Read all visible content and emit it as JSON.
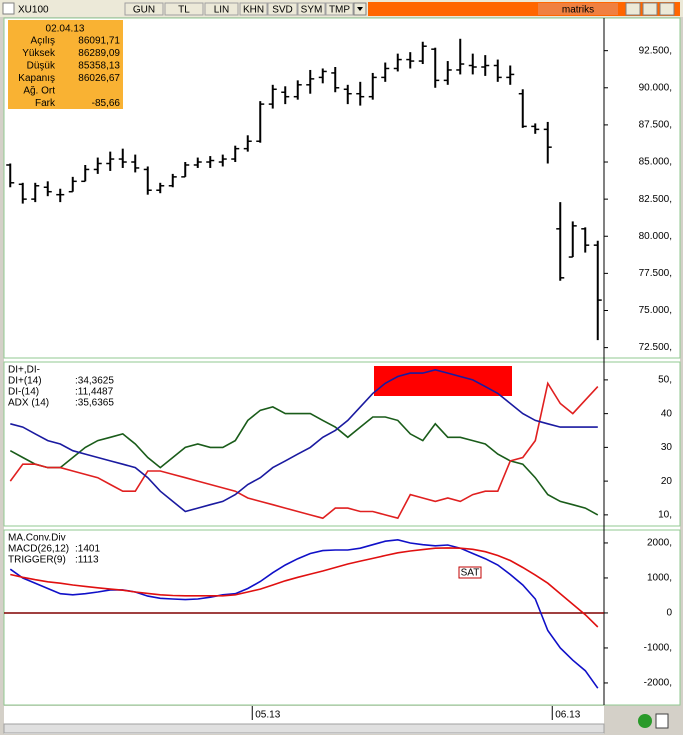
{
  "toolbar": {
    "symbol": "XU100",
    "buttons": [
      "GUN",
      "TL",
      "LIN",
      "KHN",
      "SVD",
      "SYM",
      "TMP"
    ],
    "brand": "matriks"
  },
  "info_box": {
    "date": "02.04.13",
    "rows": [
      {
        "label": "Açılış",
        "value": "86091,71"
      },
      {
        "label": "Yüksek",
        "value": "86289,09"
      },
      {
        "label": "Düşük",
        "value": "85358,13"
      },
      {
        "label": "Kapanış",
        "value": "86026,67"
      },
      {
        "label": "Ağ. Ort"
      },
      {
        "label": "Fark",
        "value": "-85,66"
      }
    ]
  },
  "chart_data": [
    {
      "type": "ohlc",
      "color": "#000000",
      "ylim": [
        71800,
        94700
      ],
      "yticks": [
        {
          "value": 72500,
          "label": "72.500,"
        },
        {
          "value": 75000,
          "label": "75.000,"
        },
        {
          "value": 77500,
          "label": "77.500,"
        },
        {
          "value": 80000,
          "label": "80.000,"
        },
        {
          "value": 82500,
          "label": "82.500,"
        },
        {
          "value": 85000,
          "label": "85.000,"
        },
        {
          "value": 87500,
          "label": "87.500,"
        },
        {
          "value": 90000,
          "label": "90.000,"
        },
        {
          "value": 92500,
          "label": "92.500,"
        }
      ],
      "open": [
        84800,
        83500,
        82500,
        83300,
        82800,
        83000,
        83700,
        84500,
        84900,
        85200,
        85000,
        84500,
        83100,
        83400,
        84000,
        84800,
        85000,
        85000,
        85200,
        85900,
        86400,
        88900,
        89700,
        89400,
        90200,
        90700,
        91000,
        89900,
        89600,
        89400,
        90700,
        91300,
        91900,
        91800,
        92600,
        90500,
        91200,
        91500,
        91400,
        91500,
        90700,
        89600,
        87400,
        87200,
        80500,
        78600,
        80500,
        79400
      ],
      "high": [
        84900,
        83600,
        83600,
        83700,
        83200,
        84000,
        84800,
        85300,
        85700,
        85900,
        85500,
        84700,
        83600,
        84200,
        85000,
        85300,
        85400,
        85500,
        86100,
        86800,
        89100,
        90200,
        90100,
        90500,
        91200,
        91300,
        91400,
        90200,
        90400,
        91000,
        91700,
        92300,
        92400,
        93100,
        92700,
        91800,
        93300,
        92300,
        92200,
        91900,
        91500,
        89900,
        87600,
        87700,
        82300,
        81000,
        80600,
        79700
      ],
      "low": [
        83300,
        82200,
        82300,
        82700,
        82300,
        83000,
        83700,
        84200,
        84400,
        84600,
        84300,
        82800,
        82900,
        83300,
        84000,
        84600,
        84600,
        84700,
        85000,
        85700,
        86300,
        88600,
        88900,
        89200,
        89600,
        90300,
        89700,
        88900,
        88800,
        89200,
        90400,
        91100,
        91300,
        91600,
        90000,
        90200,
        90900,
        90900,
        90800,
        90400,
        90200,
        87300,
        86900,
        84900,
        77000,
        78600,
        78900,
        73000
      ],
      "close": [
        83600,
        82500,
        83400,
        83000,
        82800,
        83700,
        84500,
        84900,
        85200,
        85000,
        84600,
        83100,
        83400,
        84000,
        84800,
        85000,
        85100,
        85200,
        85900,
        86400,
        88900,
        89900,
        89400,
        90200,
        90600,
        91100,
        90000,
        89600,
        89400,
        90700,
        91300,
        91900,
        91800,
        92800,
        90500,
        91200,
        91600,
        91400,
        91500,
        90700,
        90900,
        87400,
        87200,
        86000,
        77200,
        80700,
        79400,
        75700
      ]
    },
    {
      "type": "line",
      "legend_title": "DI+,DI-",
      "ylim": [
        6.7,
        55.3
      ],
      "yticks": [
        {
          "value": 10,
          "label": "10,"
        },
        20,
        30,
        40,
        {
          "value": 50,
          "label": "50,"
        }
      ],
      "series": [
        {
          "name": "DI+(14)",
          "legend_value": ":34,3625",
          "color": "#1a5c1a",
          "values": [
            29,
            27,
            25,
            24,
            24,
            27,
            30,
            32,
            33,
            34,
            31,
            27,
            24,
            27,
            30,
            31,
            30,
            30,
            32,
            38,
            41,
            42,
            40,
            40,
            40,
            38,
            36,
            33,
            36,
            39,
            39,
            38,
            34,
            32,
            37,
            33,
            33,
            32,
            31,
            28,
            26,
            25,
            21,
            16,
            14,
            13,
            12,
            10
          ]
        },
        {
          "name": "DI-(14)",
          "legend_value": ":11,4487",
          "color": "#e02020",
          "values": [
            20,
            25,
            25,
            24,
            24,
            23,
            22,
            21,
            19,
            17,
            17,
            23,
            23,
            22,
            21,
            20,
            19,
            18,
            17,
            15,
            14,
            13,
            12,
            11,
            10,
            9,
            12,
            12,
            11,
            11,
            10,
            9,
            16,
            15,
            14,
            15,
            14,
            16,
            17,
            17,
            26,
            27,
            32,
            49,
            43,
            40,
            44,
            48
          ]
        },
        {
          "name": "ADX (14)",
          "legend_value": ":35,6365",
          "color": "#1a1aa0",
          "values": [
            37,
            36,
            34,
            32,
            31,
            29,
            28,
            27,
            26,
            25,
            24,
            21,
            17,
            14,
            11,
            12,
            13,
            14,
            16,
            19,
            21,
            24,
            26,
            28,
            30,
            33,
            35,
            38,
            42,
            46,
            49,
            51,
            52,
            52,
            53,
            52,
            51,
            50,
            48,
            46,
            43,
            40,
            38,
            37,
            36,
            36,
            36,
            36
          ]
        }
      ]
    },
    {
      "type": "line",
      "legend_title": "MA.Conv.Div",
      "annotation": "SAT",
      "hline": 0,
      "hline_color": "#800000",
      "ylim": [
        -2630,
        2370
      ],
      "yticks": [
        {
          "value": -2000,
          "label": "-2000,"
        },
        {
          "value": -1000,
          "label": "-1000,"
        },
        0,
        {
          "value": 1000,
          "label": "1000,"
        },
        {
          "value": 2000,
          "label": "2000,"
        }
      ],
      "categories": [
        null,
        null,
        null,
        null,
        null,
        null,
        null,
        null,
        null,
        null,
        null,
        null,
        null,
        null,
        null,
        null,
        null,
        null,
        null,
        null,
        "05.13",
        null,
        null,
        null,
        null,
        null,
        null,
        null,
        null,
        null,
        null,
        null,
        null,
        null,
        null,
        null,
        null,
        null,
        null,
        null,
        null,
        null,
        null,
        null,
        "06.13",
        null,
        null,
        null
      ],
      "series": [
        {
          "name": "MACD(26,12)",
          "legend_value": ":1401",
          "color": "#1010c8",
          "values": [
            1250,
            1000,
            850,
            700,
            550,
            520,
            550,
            600,
            660,
            660,
            600,
            480,
            420,
            400,
            380,
            400,
            450,
            520,
            550,
            700,
            900,
            1150,
            1370,
            1550,
            1700,
            1780,
            1800,
            1800,
            1850,
            1950,
            2050,
            2090,
            2000,
            1950,
            1920,
            1940,
            1850,
            1700,
            1550,
            1370,
            1100,
            800,
            400,
            -500,
            -1000,
            -1350,
            -1650,
            -2150
          ]
        },
        {
          "name": "TRIGGER(9)",
          "legend_value": ":1113",
          "color": "#e01010",
          "values": [
            1100,
            1020,
            950,
            890,
            850,
            800,
            760,
            720,
            680,
            650,
            600,
            560,
            520,
            500,
            490,
            490,
            490,
            490,
            520,
            600,
            680,
            800,
            920,
            1020,
            1110,
            1200,
            1300,
            1400,
            1480,
            1560,
            1640,
            1720,
            1770,
            1810,
            1850,
            1860,
            1850,
            1820,
            1750,
            1640,
            1500,
            1300,
            1080,
            850,
            550,
            250,
            -50,
            -400
          ]
        }
      ]
    }
  ]
}
